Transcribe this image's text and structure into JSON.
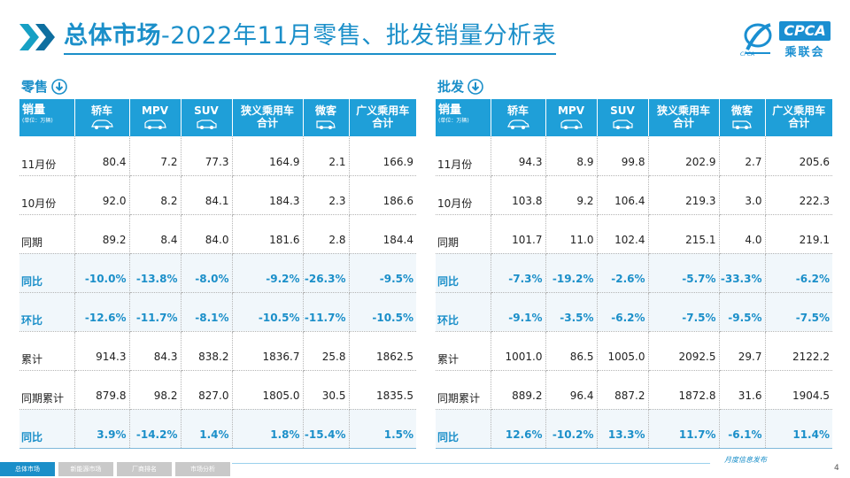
{
  "header": {
    "title_bold": "总体市场",
    "title_rest": "-2022年11月零售、批发销量分析表"
  },
  "logo": {
    "cpca": "CPCA",
    "cn": "乘联会",
    "sub": "CPCA"
  },
  "retail": {
    "label": "零售",
    "corner": "销量",
    "unit": "(单位：万辆)",
    "columns": [
      "轿车",
      "MPV",
      "SUV",
      "狭义乘用车\n合计",
      "微客",
      "广义乘用车\n合计"
    ],
    "rows": [
      {
        "label": "11月份",
        "values": [
          "80.4",
          "7.2",
          "77.3",
          "164.9",
          "2.1",
          "166.9"
        ],
        "pct": false
      },
      {
        "label": "10月份",
        "values": [
          "92.0",
          "8.2",
          "84.1",
          "184.3",
          "2.3",
          "186.6"
        ],
        "pct": false
      },
      {
        "label": "同期",
        "values": [
          "89.2",
          "8.4",
          "84.0",
          "181.6",
          "2.8",
          "184.4"
        ],
        "pct": false
      },
      {
        "label": "同比",
        "values": [
          "-10.0%",
          "-13.8%",
          "-8.0%",
          "-9.2%",
          "-26.3%",
          "-9.5%"
        ],
        "pct": true
      },
      {
        "label": "环比",
        "values": [
          "-12.6%",
          "-11.7%",
          "-8.1%",
          "-10.5%",
          "-11.7%",
          "-10.5%"
        ],
        "pct": true
      },
      {
        "label": "累计",
        "values": [
          "914.3",
          "84.3",
          "838.2",
          "1836.7",
          "25.8",
          "1862.5"
        ],
        "pct": false
      },
      {
        "label": "同期累计",
        "values": [
          "879.8",
          "98.2",
          "827.0",
          "1805.0",
          "30.5",
          "1835.5"
        ],
        "pct": false
      },
      {
        "label": "同比",
        "values": [
          "3.9%",
          "-14.2%",
          "1.4%",
          "1.8%",
          "-15.4%",
          "1.5%"
        ],
        "pct": true
      }
    ]
  },
  "wholesale": {
    "label": "批发",
    "corner": "销量",
    "unit": "(单位：万辆)",
    "columns": [
      "轿车",
      "MPV",
      "SUV",
      "狭义乘用车\n合计",
      "微客",
      "广义乘用车\n合计"
    ],
    "rows": [
      {
        "label": "11月份",
        "values": [
          "94.3",
          "8.9",
          "99.8",
          "202.9",
          "2.7",
          "205.6"
        ],
        "pct": false
      },
      {
        "label": "10月份",
        "values": [
          "103.8",
          "9.2",
          "106.4",
          "219.3",
          "3.0",
          "222.3"
        ],
        "pct": false
      },
      {
        "label": "同期",
        "values": [
          "101.7",
          "11.0",
          "102.4",
          "215.1",
          "4.0",
          "219.1"
        ],
        "pct": false
      },
      {
        "label": "同比",
        "values": [
          "-7.3%",
          "-19.2%",
          "-2.6%",
          "-5.7%",
          "-33.3%",
          "-6.2%"
        ],
        "pct": true
      },
      {
        "label": "环比",
        "values": [
          "-9.1%",
          "-3.5%",
          "-6.2%",
          "-7.5%",
          "-9.5%",
          "-7.5%"
        ],
        "pct": true
      },
      {
        "label": "累计",
        "values": [
          "1001.0",
          "86.5",
          "1005.0",
          "2092.5",
          "29.7",
          "2122.2"
        ],
        "pct": false
      },
      {
        "label": "同期累计",
        "values": [
          "889.2",
          "96.4",
          "887.2",
          "1872.8",
          "31.6",
          "1904.5"
        ],
        "pct": false
      },
      {
        "label": "同比",
        "values": [
          "12.6%",
          "-10.2%",
          "13.3%",
          "11.7%",
          "-6.1%",
          "11.4%"
        ],
        "pct": true
      }
    ]
  },
  "footer": {
    "tabs": [
      "总体市场",
      "新能源市场",
      "厂商排名",
      "市场分析"
    ],
    "active_tab": 0,
    "note": "月度信息发布",
    "page": "4"
  },
  "colors": {
    "accent": "#1b8fc9",
    "header_bg": "#1f9fd8",
    "stripe": "#f1f7fb"
  }
}
